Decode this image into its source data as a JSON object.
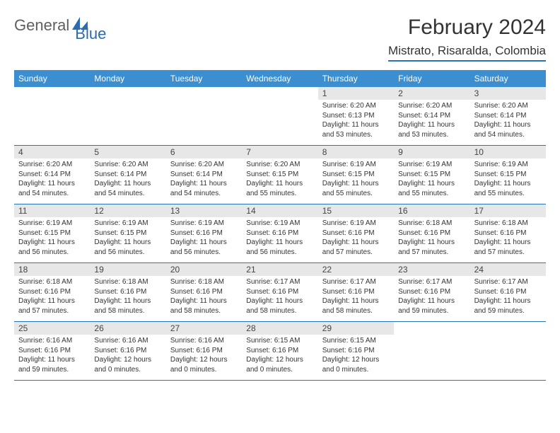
{
  "brand": {
    "general": "General",
    "blue": "Blue"
  },
  "title": "February 2024",
  "location": "Mistrato, Risaralda, Colombia",
  "header_bg": "#3b8fd1",
  "rule_color": "#2874b8",
  "daybar_bg": "#e7e7e7",
  "weekdays": [
    "Sunday",
    "Monday",
    "Tuesday",
    "Wednesday",
    "Thursday",
    "Friday",
    "Saturday"
  ],
  "weeks": [
    [
      {
        "num": "",
        "sunrise": "",
        "sunset": "",
        "daylight": ""
      },
      {
        "num": "",
        "sunrise": "",
        "sunset": "",
        "daylight": ""
      },
      {
        "num": "",
        "sunrise": "",
        "sunset": "",
        "daylight": ""
      },
      {
        "num": "",
        "sunrise": "",
        "sunset": "",
        "daylight": ""
      },
      {
        "num": "1",
        "sunrise": "Sunrise: 6:20 AM",
        "sunset": "Sunset: 6:13 PM",
        "daylight": "Daylight: 11 hours and 53 minutes."
      },
      {
        "num": "2",
        "sunrise": "Sunrise: 6:20 AM",
        "sunset": "Sunset: 6:14 PM",
        "daylight": "Daylight: 11 hours and 53 minutes."
      },
      {
        "num": "3",
        "sunrise": "Sunrise: 6:20 AM",
        "sunset": "Sunset: 6:14 PM",
        "daylight": "Daylight: 11 hours and 54 minutes."
      }
    ],
    [
      {
        "num": "4",
        "sunrise": "Sunrise: 6:20 AM",
        "sunset": "Sunset: 6:14 PM",
        "daylight": "Daylight: 11 hours and 54 minutes."
      },
      {
        "num": "5",
        "sunrise": "Sunrise: 6:20 AM",
        "sunset": "Sunset: 6:14 PM",
        "daylight": "Daylight: 11 hours and 54 minutes."
      },
      {
        "num": "6",
        "sunrise": "Sunrise: 6:20 AM",
        "sunset": "Sunset: 6:14 PM",
        "daylight": "Daylight: 11 hours and 54 minutes."
      },
      {
        "num": "7",
        "sunrise": "Sunrise: 6:20 AM",
        "sunset": "Sunset: 6:15 PM",
        "daylight": "Daylight: 11 hours and 55 minutes."
      },
      {
        "num": "8",
        "sunrise": "Sunrise: 6:19 AM",
        "sunset": "Sunset: 6:15 PM",
        "daylight": "Daylight: 11 hours and 55 minutes."
      },
      {
        "num": "9",
        "sunrise": "Sunrise: 6:19 AM",
        "sunset": "Sunset: 6:15 PM",
        "daylight": "Daylight: 11 hours and 55 minutes."
      },
      {
        "num": "10",
        "sunrise": "Sunrise: 6:19 AM",
        "sunset": "Sunset: 6:15 PM",
        "daylight": "Daylight: 11 hours and 55 minutes."
      }
    ],
    [
      {
        "num": "11",
        "sunrise": "Sunrise: 6:19 AM",
        "sunset": "Sunset: 6:15 PM",
        "daylight": "Daylight: 11 hours and 56 minutes."
      },
      {
        "num": "12",
        "sunrise": "Sunrise: 6:19 AM",
        "sunset": "Sunset: 6:15 PM",
        "daylight": "Daylight: 11 hours and 56 minutes."
      },
      {
        "num": "13",
        "sunrise": "Sunrise: 6:19 AM",
        "sunset": "Sunset: 6:16 PM",
        "daylight": "Daylight: 11 hours and 56 minutes."
      },
      {
        "num": "14",
        "sunrise": "Sunrise: 6:19 AM",
        "sunset": "Sunset: 6:16 PM",
        "daylight": "Daylight: 11 hours and 56 minutes."
      },
      {
        "num": "15",
        "sunrise": "Sunrise: 6:19 AM",
        "sunset": "Sunset: 6:16 PM",
        "daylight": "Daylight: 11 hours and 57 minutes."
      },
      {
        "num": "16",
        "sunrise": "Sunrise: 6:18 AM",
        "sunset": "Sunset: 6:16 PM",
        "daylight": "Daylight: 11 hours and 57 minutes."
      },
      {
        "num": "17",
        "sunrise": "Sunrise: 6:18 AM",
        "sunset": "Sunset: 6:16 PM",
        "daylight": "Daylight: 11 hours and 57 minutes."
      }
    ],
    [
      {
        "num": "18",
        "sunrise": "Sunrise: 6:18 AM",
        "sunset": "Sunset: 6:16 PM",
        "daylight": "Daylight: 11 hours and 57 minutes."
      },
      {
        "num": "19",
        "sunrise": "Sunrise: 6:18 AM",
        "sunset": "Sunset: 6:16 PM",
        "daylight": "Daylight: 11 hours and 58 minutes."
      },
      {
        "num": "20",
        "sunrise": "Sunrise: 6:18 AM",
        "sunset": "Sunset: 6:16 PM",
        "daylight": "Daylight: 11 hours and 58 minutes."
      },
      {
        "num": "21",
        "sunrise": "Sunrise: 6:17 AM",
        "sunset": "Sunset: 6:16 PM",
        "daylight": "Daylight: 11 hours and 58 minutes."
      },
      {
        "num": "22",
        "sunrise": "Sunrise: 6:17 AM",
        "sunset": "Sunset: 6:16 PM",
        "daylight": "Daylight: 11 hours and 58 minutes."
      },
      {
        "num": "23",
        "sunrise": "Sunrise: 6:17 AM",
        "sunset": "Sunset: 6:16 PM",
        "daylight": "Daylight: 11 hours and 59 minutes."
      },
      {
        "num": "24",
        "sunrise": "Sunrise: 6:17 AM",
        "sunset": "Sunset: 6:16 PM",
        "daylight": "Daylight: 11 hours and 59 minutes."
      }
    ],
    [
      {
        "num": "25",
        "sunrise": "Sunrise: 6:16 AM",
        "sunset": "Sunset: 6:16 PM",
        "daylight": "Daylight: 11 hours and 59 minutes."
      },
      {
        "num": "26",
        "sunrise": "Sunrise: 6:16 AM",
        "sunset": "Sunset: 6:16 PM",
        "daylight": "Daylight: 12 hours and 0 minutes."
      },
      {
        "num": "27",
        "sunrise": "Sunrise: 6:16 AM",
        "sunset": "Sunset: 6:16 PM",
        "daylight": "Daylight: 12 hours and 0 minutes."
      },
      {
        "num": "28",
        "sunrise": "Sunrise: 6:15 AM",
        "sunset": "Sunset: 6:16 PM",
        "daylight": "Daylight: 12 hours and 0 minutes."
      },
      {
        "num": "29",
        "sunrise": "Sunrise: 6:15 AM",
        "sunset": "Sunset: 6:16 PM",
        "daylight": "Daylight: 12 hours and 0 minutes."
      },
      {
        "num": "",
        "sunrise": "",
        "sunset": "",
        "daylight": ""
      },
      {
        "num": "",
        "sunrise": "",
        "sunset": "",
        "daylight": ""
      }
    ]
  ]
}
